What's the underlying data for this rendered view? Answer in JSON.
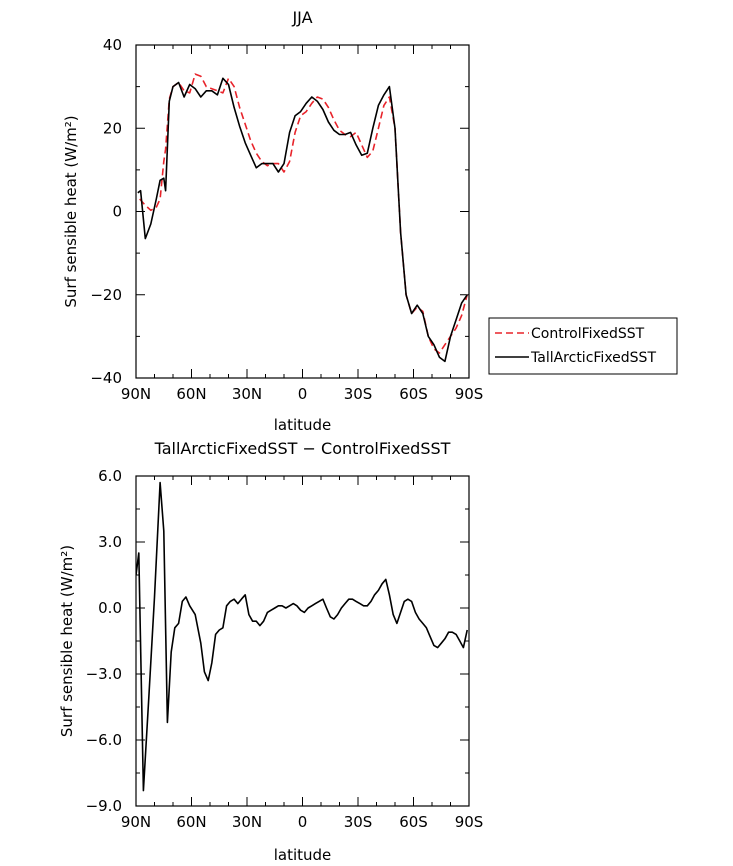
{
  "chart_data": [
    {
      "type": "line",
      "title": "JJA",
      "xlabel": "latitude",
      "ylabel": "Surf sensible heat (W/m²)",
      "xlim": [
        -90,
        90
      ],
      "ylim": [
        -40,
        40
      ],
      "x_ticks": [
        {
          "value": -90,
          "label": "90N"
        },
        {
          "value": -60,
          "label": "60N"
        },
        {
          "value": -30,
          "label": "30N"
        },
        {
          "value": 0,
          "label": "0"
        },
        {
          "value": 30,
          "label": "30S"
        },
        {
          "value": 60,
          "label": "60S"
        },
        {
          "value": 90,
          "label": "90S"
        }
      ],
      "y_ticks": [
        {
          "value": 40,
          "label": "40"
        },
        {
          "value": 20,
          "label": "20"
        },
        {
          "value": 0,
          "label": "0"
        },
        {
          "value": -20,
          "label": "−20"
        },
        {
          "value": -40,
          "label": "−40"
        }
      ],
      "legend_position": "right",
      "series": [
        {
          "name": "ControlFixedSST",
          "color": "#e8232a",
          "dash": "dashed",
          "x": [
            -88,
            -85,
            -82,
            -79,
            -77,
            -75,
            -74,
            -72,
            -70,
            -67,
            -64,
            -61,
            -58,
            -55,
            -52,
            -49,
            -46,
            -43,
            -40,
            -37,
            -34,
            -31,
            -28,
            -25,
            -22,
            -19,
            -16,
            -13,
            -10,
            -7,
            -4,
            -1,
            2,
            5,
            8,
            11,
            14,
            17,
            20,
            23,
            26,
            29,
            32,
            35,
            38,
            41,
            44,
            47,
            50,
            53,
            56,
            59,
            62,
            65,
            68,
            71,
            74,
            77,
            80,
            83,
            86,
            89
          ],
          "y": [
            3,
            1.5,
            0.3,
            1,
            3,
            12,
            15,
            27,
            30,
            31,
            29,
            28.5,
            33,
            32.5,
            30,
            29.5,
            29,
            28.5,
            32,
            30,
            25,
            21,
            17,
            14,
            12,
            11,
            11.5,
            11.5,
            9.5,
            12,
            19,
            23,
            24,
            26,
            27.5,
            27,
            25,
            22,
            19.5,
            18.5,
            18,
            19,
            16,
            13,
            14.5,
            20,
            25.5,
            27.5,
            20,
            -5,
            -20,
            -24.5,
            -23,
            -24,
            -30,
            -33,
            -34,
            -32,
            -30,
            -28,
            -25,
            -20
          ]
        },
        {
          "name": "TallArcticFixedSST",
          "color": "#000000",
          "dash": "solid",
          "x": [
            -89,
            -87.5,
            -85,
            -82,
            -79,
            -77,
            -75,
            -74,
            -72,
            -70,
            -67,
            -64,
            -61,
            -58,
            -55,
            -52,
            -49,
            -46,
            -43,
            -40,
            -37,
            -34,
            -31,
            -28,
            -25,
            -22,
            -19,
            -16,
            -13,
            -10,
            -7,
            -4,
            -1,
            2,
            5,
            8,
            11,
            14,
            17,
            20,
            23,
            26,
            29,
            32,
            35,
            38,
            41,
            44,
            47,
            50,
            53,
            56,
            59,
            62,
            65,
            68,
            71,
            74,
            77,
            80,
            83,
            86,
            89
          ],
          "y": [
            4.5,
            5,
            -6.5,
            -3,
            3,
            7.5,
            8,
            5,
            26.5,
            30,
            31,
            27.5,
            30.5,
            29.5,
            27.5,
            29,
            29,
            28,
            32,
            30.5,
            25,
            20.5,
            16.5,
            13.5,
            10.5,
            11.5,
            11.5,
            11.5,
            9.5,
            11.5,
            19,
            23,
            24,
            26,
            27.5,
            26.5,
            24.5,
            21.5,
            19.5,
            18.5,
            18.5,
            19,
            16,
            13.5,
            14,
            20,
            25.5,
            28,
            30,
            20,
            -5,
            -20,
            -24.5,
            -22.5,
            -24.5,
            -30,
            -32,
            -35,
            -36,
            -30,
            -26,
            -22,
            -20
          ]
        }
      ]
    },
    {
      "type": "line",
      "title": "TallArcticFixedSST − ControlFixedSST",
      "xlabel": "latitude",
      "ylabel": "Surf sensible heat (W/m²)",
      "xlim": [
        -90,
        90
      ],
      "ylim": [
        -9,
        6
      ],
      "x_ticks": [
        {
          "value": -90,
          "label": "90N"
        },
        {
          "value": -60,
          "label": "60N"
        },
        {
          "value": -30,
          "label": "30N"
        },
        {
          "value": 0,
          "label": "0"
        },
        {
          "value": 30,
          "label": "30S"
        },
        {
          "value": 60,
          "label": "60S"
        },
        {
          "value": 90,
          "label": "90S"
        }
      ],
      "y_ticks": [
        {
          "value": 6,
          "label": "6.0"
        },
        {
          "value": 3,
          "label": "3.0"
        },
        {
          "value": 0,
          "label": "0.0"
        },
        {
          "value": -3,
          "label": "−3.0"
        },
        {
          "value": -6,
          "label": "−6.0"
        },
        {
          "value": -9,
          "label": "−9.0"
        }
      ],
      "series": [
        {
          "color": "#000000",
          "dash": "solid",
          "x": [
            -90,
            -88.5,
            -86,
            -83,
            -80,
            -77,
            -75,
            -73,
            -71,
            -69,
            -67,
            -65,
            -63,
            -61,
            -58,
            -55,
            -53,
            -51,
            -49,
            -47,
            -45,
            -43,
            -41,
            -39,
            -37,
            -35,
            -33,
            -31,
            -29,
            -27,
            -25,
            -23,
            -21,
            -19,
            -17,
            -15,
            -13,
            -11,
            -9,
            -7,
            -5,
            -3,
            -1,
            1,
            3,
            5,
            7,
            9,
            11,
            13,
            15,
            17,
            19,
            21,
            23,
            25,
            27,
            29,
            31,
            33,
            35,
            37,
            39,
            41,
            43,
            45,
            47,
            49,
            51,
            53,
            55,
            57,
            59,
            61,
            63,
            65,
            67,
            69,
            71,
            73,
            75,
            77,
            79,
            81,
            83,
            85,
            87,
            89
          ],
          "y": [
            1.5,
            2.5,
            -8.3,
            -4,
            0.5,
            5.7,
            3.5,
            -5.2,
            -2,
            -0.9,
            -0.7,
            0.3,
            0.5,
            0.1,
            -0.3,
            -1.6,
            -2.9,
            -3.3,
            -2.5,
            -1.2,
            -1,
            -0.9,
            0.1,
            0.3,
            0.4,
            0.2,
            0.4,
            0.6,
            -0.3,
            -0.6,
            -0.6,
            -0.8,
            -0.6,
            -0.2,
            -0.1,
            0,
            0.1,
            0.1,
            0,
            0.1,
            0.2,
            0.1,
            -0.1,
            -0.2,
            0,
            0.1,
            0.2,
            0.3,
            0.4,
            0,
            -0.4,
            -0.5,
            -0.3,
            0,
            0.2,
            0.4,
            0.4,
            0.3,
            0.2,
            0.1,
            0.1,
            0.3,
            0.6,
            0.8,
            1.1,
            1.3,
            0.6,
            -0.3,
            -0.7,
            -0.2,
            0.3,
            0.4,
            0.3,
            -0.2,
            -0.5,
            -0.7,
            -0.9,
            -1.3,
            -1.7,
            -1.8,
            -1.6,
            -1.4,
            -1.1,
            -1.1,
            -1.2,
            -1.5,
            -1.8,
            -1
          ]
        }
      ]
    }
  ]
}
